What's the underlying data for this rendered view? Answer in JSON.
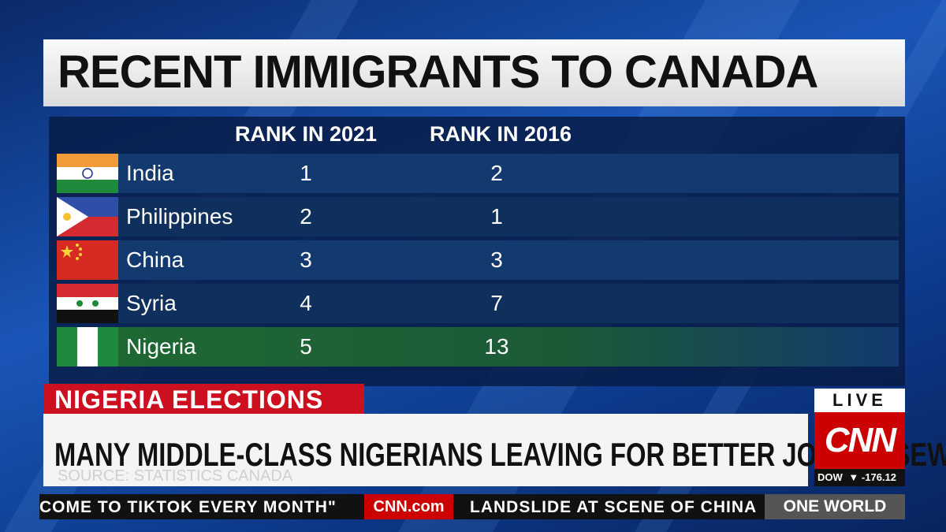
{
  "header": {
    "title": "RECENT IMMIGRANTS TO CANADA"
  },
  "table": {
    "columns": [
      "RANK IN 2021",
      "RANK IN 2016"
    ],
    "rows": [
      [
        "India",
        "1",
        "2"
      ],
      [
        "Philippines",
        "2",
        "1"
      ],
      [
        "China",
        "3",
        "3"
      ],
      [
        "Syria",
        "4",
        "7"
      ],
      [
        "Nigeria",
        "5",
        "13"
      ]
    ]
  },
  "banner": {
    "label": "NIGERIA ELECTIONS",
    "headline": "MANY MIDDLE-CLASS NIGERIANS LEAVING FOR BETTER JOBS ELSEWHERE",
    "source": "SOURCE: STATISTICS CANADA"
  },
  "bug": {
    "live": "LIVE",
    "logo": "CNN",
    "dow_label": "DOW",
    "dow_value": "-176.12"
  },
  "ticker": {
    "left": "COME TO TIKTOK EVERY MONTH\"",
    "site": "CNN.com",
    "right": "LANDSLIDE AT SCENE OF CHINA",
    "program": "ONE WORLD"
  }
}
